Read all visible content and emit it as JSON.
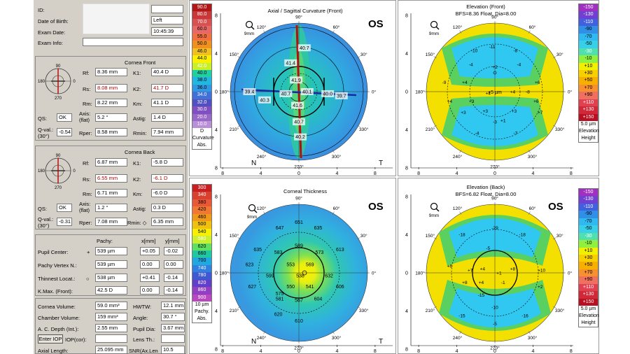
{
  "patient": {
    "id_label": "ID:",
    "dob_label": "Date of Birth:",
    "eye": "Left",
    "exam_date_label": "Exam Date:",
    "exam_time": "10:45:39",
    "exam_info_label": "Exam Info:"
  },
  "cornea_front": {
    "title": "Cornea Front",
    "rf_label": "Rf:",
    "rf": "8.36 mm",
    "rs_label": "Rs:",
    "rs": "8.08 mm",
    "rm_label": "Rm:",
    "rm": "8.22 mm",
    "k1_label": "K1:",
    "k1": "40.4 D",
    "k2_label": "K2:",
    "k2": "41.7 D",
    "km_label": "Km:",
    "km": "41.1 D",
    "qs_label": "QS:",
    "qs": "OK",
    "axis_label": "Axis:",
    "axis_sub": "(flat)",
    "axis": "5.2 °",
    "astig_label": "Astig:",
    "astig": "1.4 D",
    "qval_label": "Q-val.:",
    "qval_sub": "(30°)",
    "qval": "-0.54",
    "rper_label": "Rper:",
    "rper": "8.58 mm",
    "rmin_label": "Rmin:",
    "rmin": "7.94 mm"
  },
  "cornea_back": {
    "title": "Cornea Back",
    "rf_label": "Rf:",
    "rf": "6.87 mm",
    "rs_label": "Rs:",
    "rs": "6.55 mm",
    "rm_label": "Rm:",
    "rm": "6.71 mm",
    "k1_label": "K1:",
    "k1": "-5.8 D",
    "k2_label": "K2:",
    "k2": "-6.1 D",
    "km_label": "Km:",
    "km": "-6.0 D",
    "qs_label": "QS:",
    "qs": "OK",
    "axis_label": "Axis:",
    "axis_sub": "(flat)",
    "axis": "1.2 °",
    "astig_label": "Astig:",
    "astig": "0.3 D",
    "qval_label": "Q-val.:",
    "qval_sub": "(30°)",
    "qval": "-0.31",
    "rper_label": "Rper:",
    "rper": "7.08 mm",
    "rmin_label": "Rmin: ◇",
    "rmin": "6.35 mm"
  },
  "pachy": {
    "col_pachy": "Pachy:",
    "col_x": "x[mm]",
    "col_y": "y[mm]",
    "rows": [
      {
        "label": "Pupil Center:",
        "marker": "+",
        "val": "539 µm",
        "x": "+0.05",
        "y": "-0.02"
      },
      {
        "label": "Pachy Vertex N.:",
        "marker": "",
        "val": "539 µm",
        "x": "0.00",
        "y": "0.00"
      },
      {
        "label": "Thinnest Locat.:",
        "marker": "○",
        "val": "538 µm",
        "x": "+0.41",
        "y": "-0.14"
      },
      {
        "label": "K.Max. (Front):",
        "marker": "",
        "val": "42.5 D",
        "x": "0.00",
        "y": "-0.14"
      }
    ]
  },
  "volume": {
    "cornea_volume_label": "Cornea Volume:",
    "cornea_volume": "59.0 mm³",
    "hwtw_label": "HWTW:",
    "hwtw": "12.1 mm",
    "chamber_volume_label": "Chamber Volume:",
    "chamber_volume": "159 mm³",
    "angle_label": "Angle:",
    "angle": "30.7 °",
    "acd_label": "A. C. Depth (Int.):",
    "acd": "2.55 mm",
    "pupil_dia_label": "Pupil Dia:",
    "pupil_dia": "3.67 mm",
    "enter_iop": "Enter IOP",
    "iop_cor_label": "IOP(cor):",
    "lens_th_label": "Lens Th.:",
    "axial_length_label": "Axial Length:",
    "axial_length": "25.095 mm",
    "snr_label": "SNR(Ax.Len",
    "snr": "10.5"
  },
  "axial_map": {
    "title": "Axial / Sagittal Curvature (Front)",
    "eye_label": "OS",
    "zoom_label": "9mm",
    "nasal": "N",
    "temporal": "T",
    "values": [
      "40.7",
      "41.4",
      "41.9",
      "40.7",
      "40.1",
      "40.0",
      "39.7",
      "39.4",
      "40.3",
      "41.6",
      "40.7",
      "40.2"
    ],
    "scale": {
      "values": [
        "90.0",
        "80.0",
        "70.0",
        "60.0",
        "55.0",
        "50.0",
        "46.0",
        "44.0",
        "42.0",
        "40.0",
        "38.0",
        "36.0",
        "34.0",
        "32.0",
        "30.0",
        "20.0",
        "10.0"
      ],
      "colors": [
        "#b01818",
        "#c83838",
        "#d85050",
        "#e86868",
        "#f07040",
        "#f09020",
        "#f0c020",
        "#f8f000",
        "#c8f028",
        "#20d0a0",
        "#20b8e0",
        "#3098e0",
        "#4070d8",
        "#5050c0",
        "#8050c0",
        "#9868c8",
        "#b890d8"
      ],
      "unit": "D",
      "caption1": "Curvature",
      "caption2": "Abs."
    }
  },
  "elev_front_map": {
    "title": "Elevation (Front)",
    "subtitle": "BFS=8.36 Float, Dia=8.00",
    "zoom_label": "9mm",
    "center_label": "+5 µm",
    "values": [
      "-10",
      "-11",
      "-8",
      "-4",
      "+2",
      "-4",
      "+6",
      "+4",
      "+4",
      "+4",
      "+4",
      "+3",
      "+6",
      "+3",
      "+3",
      "+3",
      "+7",
      "+1",
      "-4",
      "-7",
      "-9",
      "-8",
      "-3"
    ],
    "scale": {
      "values": [
        "-150",
        "-130",
        "-110",
        "-90",
        "-70",
        "-50",
        "-30",
        "-10",
        "+10",
        "+30",
        "+50",
        "+70",
        "+90",
        "+110",
        "+130",
        "+150"
      ],
      "colors": [
        "#a030c0",
        "#7040d0",
        "#4060e0",
        "#3090e8",
        "#30b8f0",
        "#38d0e8",
        "#50e0b0",
        "#90f040",
        "#f0f000",
        "#f8d000",
        "#f8b000",
        "#f89030",
        "#f07060",
        "#e04050",
        "#d02838",
        "#b81020"
      ],
      "unit": "5.0 µm",
      "caption1": "Elevation",
      "caption2": "Height"
    }
  },
  "thickness_map": {
    "title": "Corneal Thickness",
    "eye_label": "OS",
    "zoom_label": "9mm",
    "nasal": "N",
    "temporal": "T",
    "values": [
      "651",
      "647",
      "635",
      "589",
      "583",
      "573",
      "635",
      "613",
      "553",
      "569",
      "623",
      "538",
      "599",
      "632",
      "627",
      "550",
      "541",
      "606",
      "581",
      "575",
      "567",
      "604",
      "620",
      "610"
    ],
    "scale": {
      "values": [
        "300",
        "340",
        "380",
        "420",
        "460",
        "500",
        "540",
        "580",
        "620",
        "660",
        "700",
        "740",
        "780",
        "820",
        "860",
        "900"
      ],
      "colors": [
        "#c82020",
        "#d84030",
        "#e85838",
        "#f07830",
        "#f09818",
        "#f0c010",
        "#f8f000",
        "#c8f030",
        "#60e060",
        "#20c8a0",
        "#20a8e0",
        "#3080e0",
        "#4058d0",
        "#6040c8",
        "#9040c0",
        "#b848c0"
      ],
      "unit": "10 µm",
      "caption1": "Pachy.",
      "caption2": "Abs."
    }
  },
  "elev_back_map": {
    "title": "Elevation (Back)",
    "subtitle": "BFS=6.82 Float, Dia=8.00",
    "eye_label": "OS",
    "zoom_label": "9mm",
    "values": [
      "-29",
      "-18",
      "-5",
      "-18",
      "+6",
      "+7",
      "+4",
      "+1",
      "+8",
      "+10",
      "+8",
      "-1",
      "+4",
      "+2",
      "-15",
      "-10",
      "-16",
      "-5",
      "-15"
    ],
    "scale": {
      "values": [
        "-150",
        "-130",
        "-110",
        "-90",
        "-70",
        "-50",
        "-30",
        "-10",
        "+10",
        "+30",
        "+50",
        "+70",
        "+90",
        "+110",
        "+130",
        "+150"
      ],
      "colors": [
        "#a030c0",
        "#7040d0",
        "#4060e0",
        "#3090e8",
        "#30b8f0",
        "#38d0e8",
        "#50e0b0",
        "#90f040",
        "#f0f000",
        "#f8d000",
        "#f8b000",
        "#f89030",
        "#f07060",
        "#e04050",
        "#d02838",
        "#b81020"
      ],
      "unit": "5.0 µm",
      "caption1": "Elevation",
      "caption2": "Height"
    }
  },
  "axis_ticks": [
    "8",
    "4",
    "0",
    "4",
    "8"
  ],
  "angle_labels": [
    "90°",
    "120°",
    "150°",
    "180°",
    "210°",
    "240°",
    "270°",
    "300°",
    "330°",
    "0°",
    "30°",
    "60°"
  ],
  "mini_labels": [
    "90",
    "180",
    "0",
    "270"
  ]
}
